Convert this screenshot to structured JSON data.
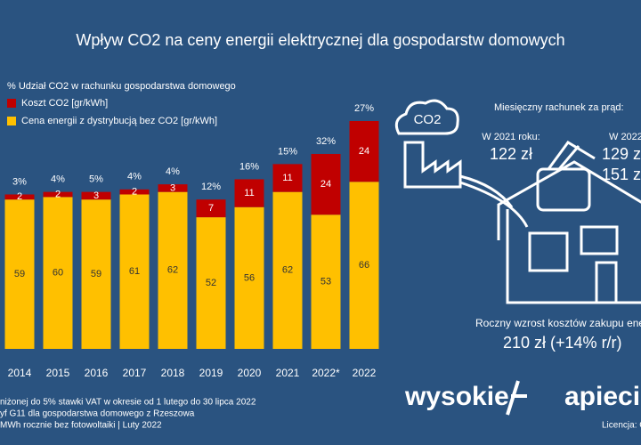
{
  "chart_data": {
    "type": "stacked-bar",
    "title": "Wpływ CO2 na ceny energii elektrycznej dla gospodarstw domowych",
    "categories": [
      "2014",
      "2015",
      "2016",
      "2017",
      "2018",
      "2019",
      "2020",
      "2021",
      "2022*",
      "2022"
    ],
    "series": [
      {
        "name": "Cena energii z dystrybucją bez CO2 [gr/kWh]",
        "color": "#ffc000",
        "values": [
          59,
          60,
          59,
          61,
          62,
          52,
          56,
          62,
          53,
          66
        ]
      },
      {
        "name": "Koszt CO2 [gr/kWh]",
        "color": "#c00000",
        "values": [
          2,
          2,
          3,
          2,
          3,
          7,
          11,
          11,
          24,
          24
        ]
      }
    ],
    "share": {
      "name": "% Udział CO2 w rachunku gospodarstwa domowego",
      "values": [
        3,
        4,
        5,
        4,
        4,
        12,
        16,
        15,
        32,
        27
      ],
      "value_labels": [
        "3%",
        "4%",
        "5%",
        "4%",
        "4%",
        "12%",
        "16%",
        "15%",
        "32%",
        "27%"
      ]
    },
    "ylim": [
      0,
      90
    ],
    "side": {
      "cloud": "CO2",
      "heading": "Miesięczny rachunek za prąd:",
      "y2021_label": "W 2021 roku:",
      "y2021_value": "122 zł",
      "y2022_label": "W 2022",
      "y2022_value_a": "129 z",
      "y2022_value_b": "151 z",
      "annual_label": "Roczny wzrost kosztów zakupu ene",
      "annual_value": "210 zł (+14% r/r)"
    },
    "notes": [
      "niżonej do 5% stawki VAT w okresie od 1 lutego do 30 lipca 2022",
      "yf G11 dla gospodarstwa domowego z Rzeszowa",
      "MWh rocznie bez fotowoltaiki  | Luty  2022"
    ],
    "logo_a": "wysokie",
    "logo_b": "apieci",
    "license": "Licencja: CC"
  }
}
